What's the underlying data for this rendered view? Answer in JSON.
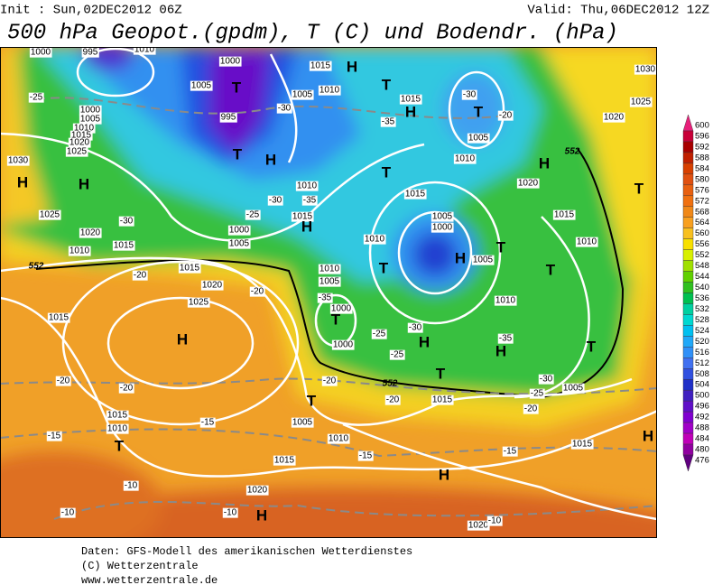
{
  "header": {
    "init": "Init : Sun,02DEC2012 06Z",
    "valid": "Valid: Thu,06DEC2012 12Z",
    "title": "500 hPa Geopot.(gpdm), T (C) und Bodendr. (hPa)"
  },
  "map": {
    "labels": [
      "1000",
      "995",
      "1010",
      "1000",
      "1015",
      "H",
      "1030",
      "1005",
      "T",
      "1005",
      "1010",
      "1015",
      "T",
      "T",
      "-30",
      "-25",
      "1000",
      "1005",
      "1010",
      "1015",
      "1020",
      "1025",
      "1020",
      "1025",
      "H",
      "995",
      "-30",
      "-35",
      "-20",
      "1005",
      "T",
      "H",
      "1030",
      "1010",
      "H",
      "H",
      "H",
      "T",
      "1010",
      "-30",
      "-35",
      "1020",
      "T",
      "1015",
      "1015",
      "H",
      "1025",
      "-30",
      "1005",
      "1000",
      "1020",
      "1015",
      "-25",
      "1000",
      "1005",
      "1010",
      "T",
      "T",
      "H",
      "1010",
      "1005",
      "1015",
      "1010",
      "1015",
      "-20",
      "1010",
      "1005",
      "T",
      "1020",
      "-20",
      "-35",
      "1025",
      "1015",
      "1000",
      "T",
      "1010",
      "H",
      "-30",
      "-25",
      "1000",
      "H",
      "H",
      "-35",
      "T",
      "T",
      "-25",
      "-20",
      "-20",
      "-20",
      "1005",
      "-25",
      "-30",
      "T",
      "1015",
      "-20",
      "-20",
      "1015",
      "1010",
      "T",
      "-15",
      "-15",
      "1005",
      "1010",
      "1015",
      "H",
      "-15",
      "1015",
      "-15",
      "H",
      "-10",
      "1020",
      "-10",
      "-10",
      "H",
      "1020",
      "-10",
      "552",
      "552",
      "552"
    ]
  },
  "colorbar": {
    "ticks": [
      600,
      596,
      592,
      588,
      584,
      580,
      576,
      572,
      568,
      564,
      560,
      556,
      552,
      548,
      544,
      540,
      536,
      532,
      528,
      524,
      520,
      516,
      512,
      508,
      504,
      500,
      496,
      492,
      488,
      484,
      480,
      476
    ],
    "colors": [
      "#e8207a",
      "#c80038",
      "#a80000",
      "#c02000",
      "#d84000",
      "#e05010",
      "#e86010",
      "#f07010",
      "#f08818",
      "#f8a020",
      "#f8c020",
      "#f8e000",
      "#d8f000",
      "#a0e000",
      "#60d000",
      "#30c020",
      "#00c050",
      "#00d0a0",
      "#00d8d0",
      "#00c0f0",
      "#20a8f8",
      "#3090f8",
      "#4070f0",
      "#3050e0",
      "#2030c8",
      "#4020c0",
      "#6010c8",
      "#8000d0",
      "#a000c8",
      "#c000b8",
      "#9000a0",
      "#600080"
    ]
  },
  "footer": {
    "lines": [
      "Daten: GFS-Modell des amerikanischen Wetterdienstes",
      "(C) Wetterzentrale",
      "www.wetterzentrale.de"
    ]
  }
}
